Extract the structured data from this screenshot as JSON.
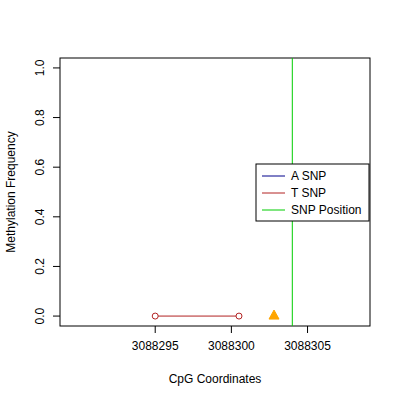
{
  "chart_data": {
    "type": "line",
    "x_label": "CpG Coordinates",
    "y_label": "Methylation Frequency",
    "xlim": [
      3088288.75,
      3088309.1
    ],
    "xticks": [
      3088295,
      3088300,
      3088305
    ],
    "ylim": [
      -0.04,
      1.04
    ],
    "yticks": [
      {
        "value": 0,
        "label": "0.0"
      },
      {
        "value": 0.2,
        "label": "0.2"
      },
      {
        "value": 0.4,
        "label": "0.4"
      },
      {
        "value": 0.6,
        "label": "0.6"
      },
      {
        "value": 0.8,
        "label": "0.8"
      },
      {
        "value": 1,
        "label": "1.0"
      }
    ],
    "legend": "right",
    "series": [
      {
        "name": "A SNP",
        "type": "line",
        "color": "#00008b",
        "x": [],
        "values": []
      },
      {
        "name": "T SNP",
        "type": "line",
        "color": "#b22222",
        "marker": "circle",
        "line_style": "solid",
        "x": [
          3088295,
          3088300.5
        ],
        "values": [
          0,
          0
        ]
      },
      {
        "name": "SNP Position",
        "type": "vline",
        "color": "#00cd00",
        "x": [
          3088304
        ]
      }
    ],
    "markers": [
      {
        "x": 3088302.8,
        "value": 0,
        "color": "#ffa500",
        "marker": "triangle"
      }
    ]
  }
}
